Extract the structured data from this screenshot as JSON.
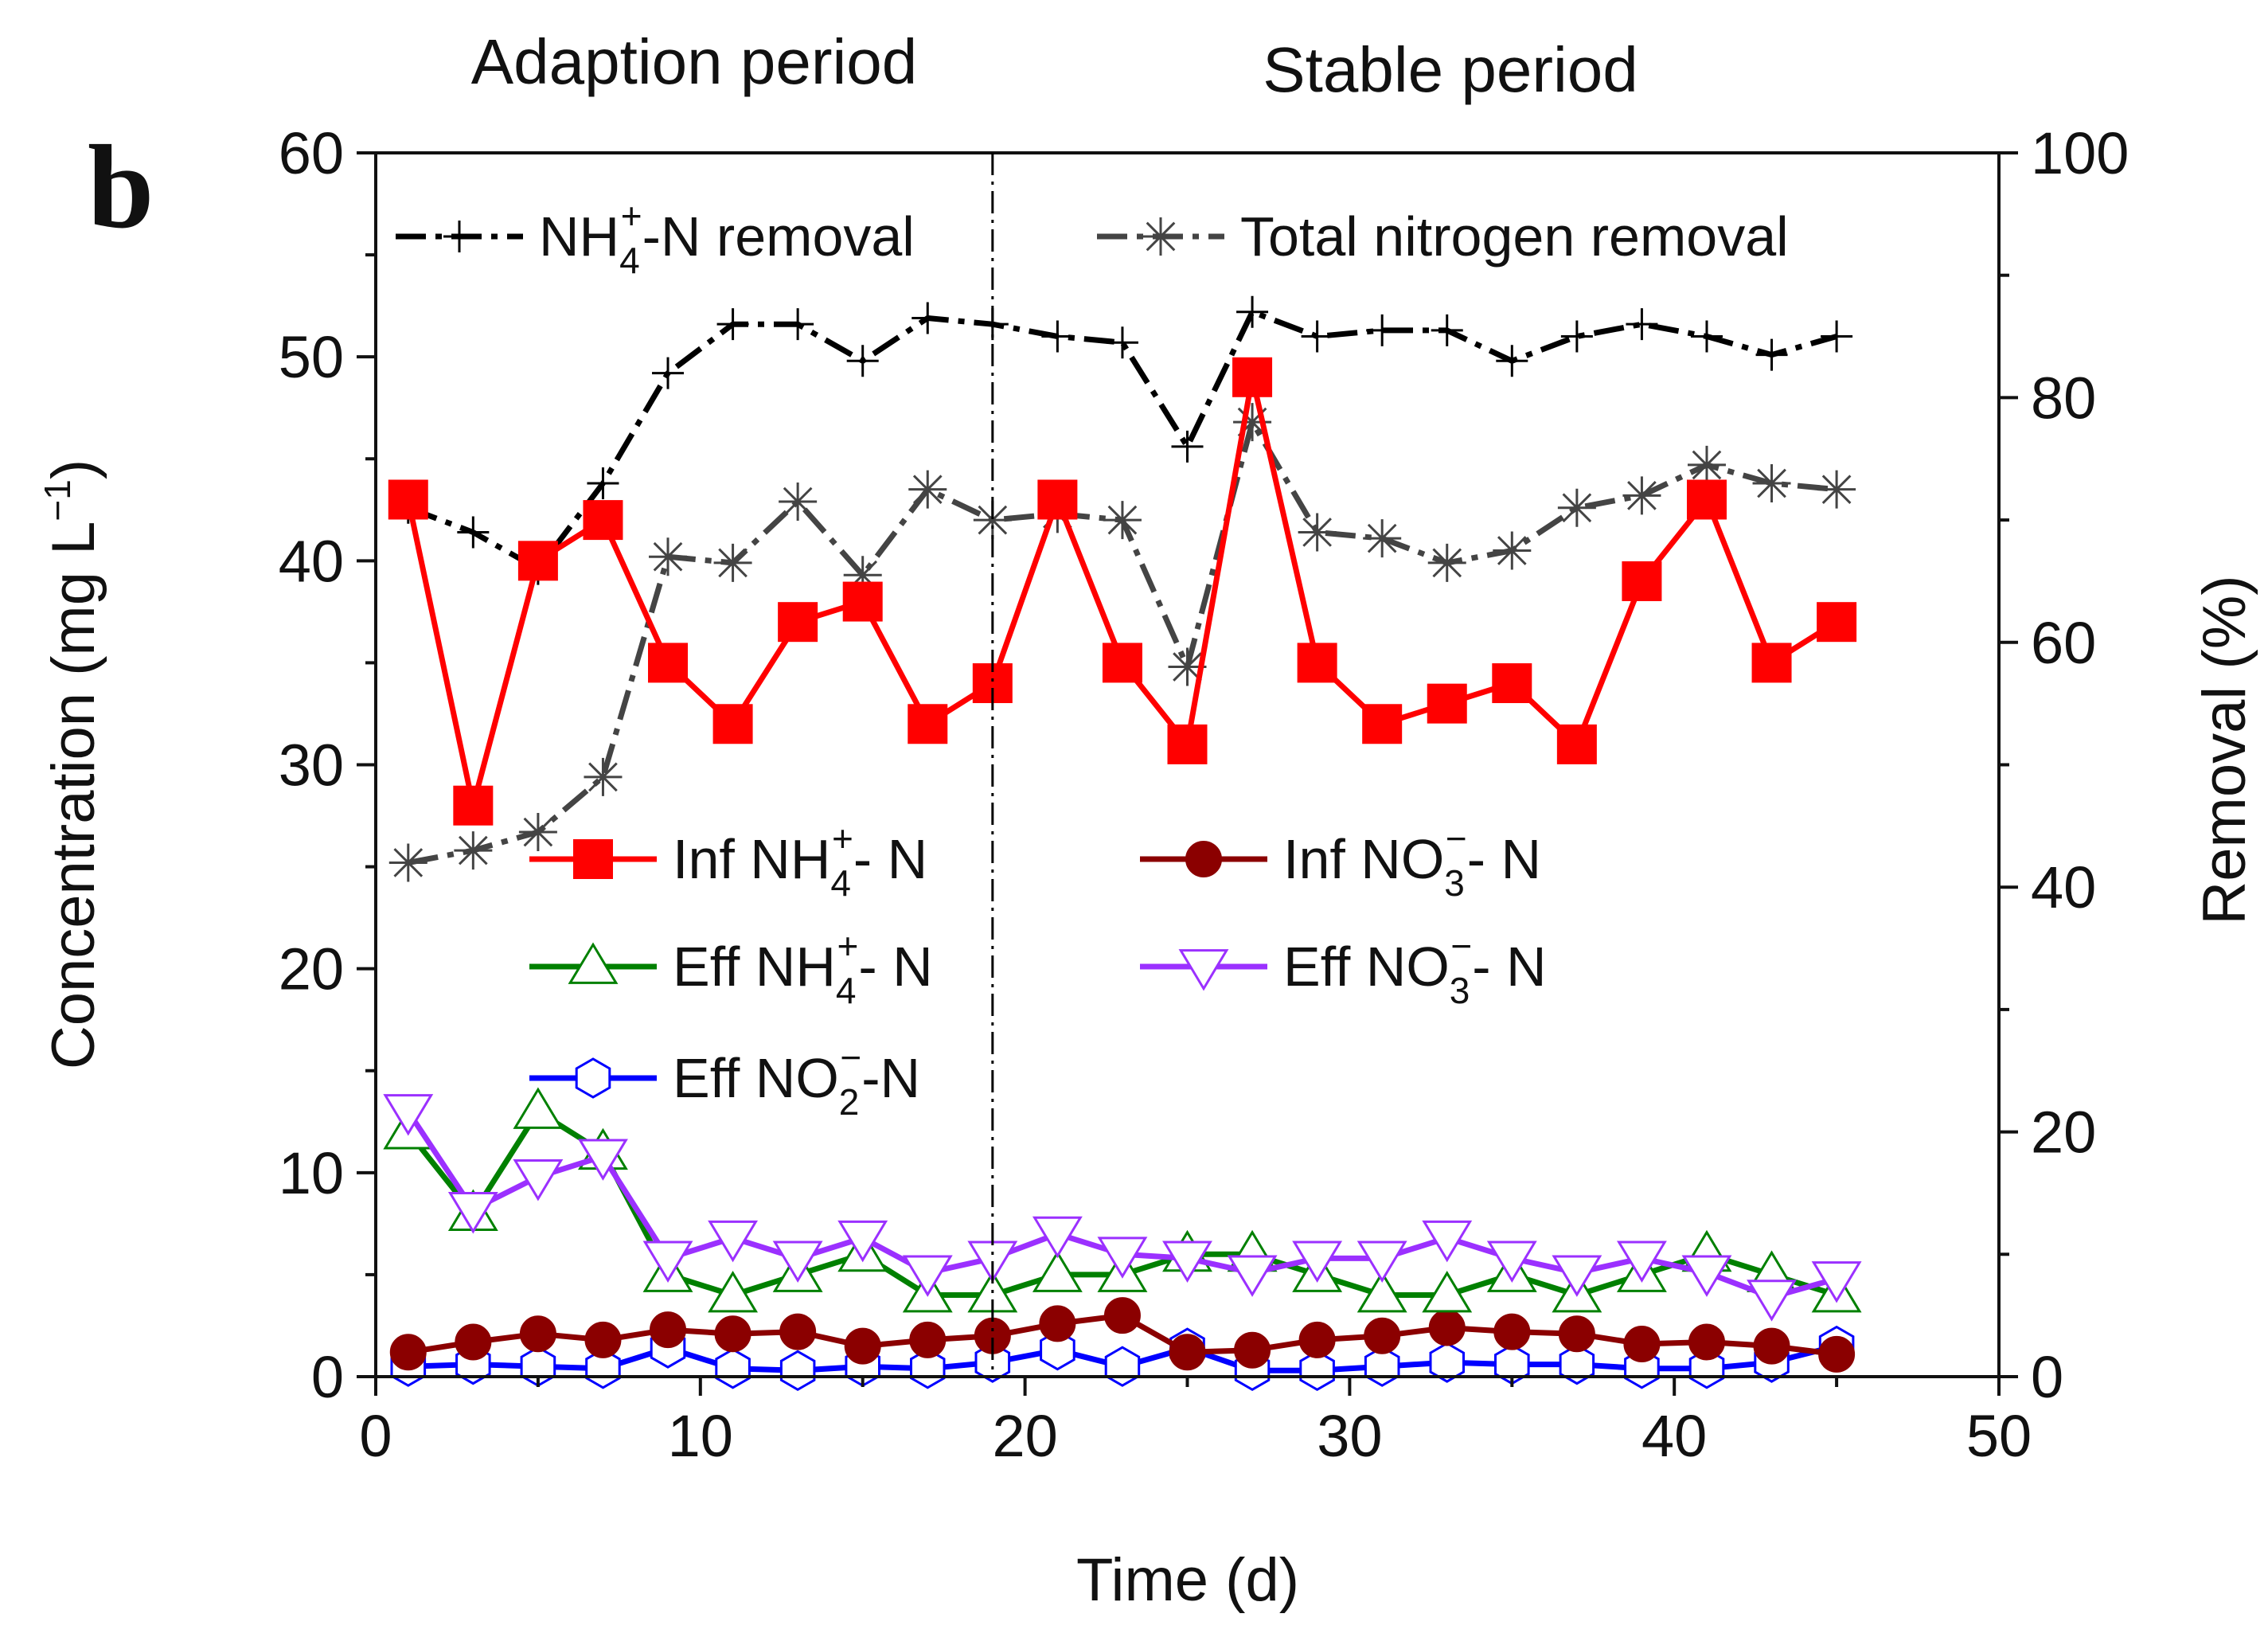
{
  "chart_data": {
    "type": "line",
    "panel_label": "b",
    "period_labels": [
      "Adaption period",
      "Stable period"
    ],
    "divider_x": 19,
    "xlabel": "Time (d)",
    "ylabel_left": "Concentration (mg L",
    "ylabel_left_exp": "−1",
    "ylabel_left_close": ")",
    "ylabel_right": "Removal (%)",
    "xlim": [
      0,
      50
    ],
    "ylim_left": [
      0,
      60
    ],
    "ylim_right": [
      0,
      100
    ],
    "xticks": [
      0,
      10,
      20,
      30,
      40,
      50
    ],
    "yticks_left": [
      0,
      10,
      20,
      30,
      40,
      50,
      60
    ],
    "yticks_right": [
      0,
      20,
      40,
      60,
      80,
      100
    ],
    "x": [
      1,
      3,
      5,
      7,
      9,
      11,
      13,
      15,
      17,
      19,
      21,
      23,
      25,
      27,
      29,
      31,
      33,
      35,
      37,
      39,
      41,
      43,
      45
    ],
    "series": [
      {
        "id": "nh4_removal",
        "name": "NH4+-N removal",
        "legend": {
          "main": "NH",
          "sub": "4",
          "sup": "+",
          "rest": "-N removal"
        },
        "axis": "right",
        "color": "#000000",
        "marker": "plus",
        "dash": "dashed",
        "values": [
          71,
          69,
          66,
          73,
          82,
          86,
          86,
          83,
          86.5,
          86,
          85,
          84.5,
          76,
          87,
          85,
          85.5,
          85.5,
          83,
          85,
          86,
          85,
          83.5,
          85
        ]
      },
      {
        "id": "tn_removal",
        "name": "Total nitrogen removal",
        "legend": {
          "main": "Total nitrogen removal",
          "sub": "",
          "sup": "",
          "rest": ""
        },
        "axis": "right",
        "color": "#444444",
        "marker": "star",
        "dash": "dashed",
        "values": [
          42,
          43,
          44.5,
          49,
          67,
          66.5,
          71.5,
          65.5,
          72.5,
          70,
          70.5,
          70,
          58,
          78,
          69,
          68.5,
          66.5,
          67.5,
          71,
          72,
          74.5,
          73,
          72.5
        ]
      },
      {
        "id": "inf_nh4",
        "name": "Inf NH4+- N",
        "legend": {
          "main": "Inf NH",
          "sub": "4",
          "sup": "+",
          "rest": "- N"
        },
        "axis": "left",
        "color": "#ff0000",
        "marker": "square",
        "dash": "solid",
        "values": [
          43,
          28,
          40,
          42,
          35,
          32,
          37,
          38,
          32,
          34,
          43,
          35,
          31,
          49,
          35,
          32,
          33,
          34,
          31,
          39,
          43,
          35,
          37
        ]
      },
      {
        "id": "inf_no3",
        "name": "Inf NO3−- N",
        "legend": {
          "main": "Inf NO",
          "sub": "3",
          "sup": "−",
          "rest": "- N"
        },
        "axis": "left",
        "color": "#8b0000",
        "marker": "circle",
        "dash": "solid",
        "values": [
          1.2,
          1.7,
          2.1,
          1.8,
          2.3,
          2.1,
          2.2,
          1.5,
          1.8,
          2.0,
          2.6,
          3.0,
          1.2,
          1.3,
          1.8,
          2.0,
          2.4,
          2.2,
          2.1,
          1.6,
          1.7,
          1.5,
          1.1
        ]
      },
      {
        "id": "eff_nh4",
        "name": "Eff NH4+- N",
        "legend": {
          "main": "Eff NH",
          "sub": "4",
          "sup": "+",
          "rest": "- N"
        },
        "axis": "left",
        "color": "#008000",
        "marker": "triangle-up",
        "dash": "solid",
        "values": [
          12,
          8,
          13,
          11,
          5,
          4,
          5,
          6,
          4,
          4,
          5,
          5,
          6,
          6,
          5,
          4,
          4,
          5,
          4,
          5,
          6,
          5,
          4
        ]
      },
      {
        "id": "eff_no3",
        "name": "Eff NO3−- N",
        "legend": {
          "main": "Eff NO",
          "sub": "3",
          "sup": "−",
          "rest": "- N"
        },
        "axis": "left",
        "color": "#9b30ff",
        "marker": "triangle-down",
        "dash": "solid",
        "values": [
          13,
          8.2,
          9.8,
          10.8,
          5.8,
          6.8,
          5.8,
          6.8,
          5.1,
          5.8,
          7,
          6,
          5.8,
          5.1,
          5.8,
          5.8,
          6.8,
          5.8,
          5.1,
          5.8,
          5.1,
          3.9,
          4.8
        ]
      },
      {
        "id": "eff_no2",
        "name": "Eff NO2−-N",
        "legend": {
          "main": "Eff NO",
          "sub": "2",
          "sup": "−",
          "rest": "-N"
        },
        "axis": "left",
        "color": "#0000ff",
        "marker": "hexagon",
        "dash": "solid",
        "values": [
          0.5,
          0.6,
          0.5,
          0.4,
          1.4,
          0.4,
          0.3,
          0.5,
          0.4,
          0.7,
          1.3,
          0.5,
          1.4,
          0.3,
          0.3,
          0.5,
          0.7,
          0.6,
          0.6,
          0.4,
          0.4,
          0.7,
          1.5
        ]
      }
    ]
  }
}
